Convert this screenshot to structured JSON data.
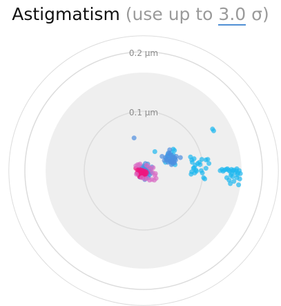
{
  "title": {
    "main": "Astigmatism",
    "open": "(use up to",
    "sigma_value": "3.0",
    "sigma_unit": "σ)"
  },
  "chart_data": {
    "type": "scatter",
    "title": "Astigmatism",
    "rings": [
      {
        "value": 0.2,
        "label": "0.2 μm"
      },
      {
        "value": 0.1,
        "label": "0.1 μm"
      }
    ],
    "sigma_limit": 3.0,
    "sigma_radius": 0.165,
    "max_radius": 0.227,
    "colors": {
      "ring": "#dcdcdc",
      "sigma_area": "#efefef",
      "blue": "#4f8fe0",
      "cyan": "#1fb8ef",
      "magenta": "#f0157f",
      "pink": "#d86cc4"
    },
    "series": [
      {
        "color": "cyan",
        "x": [
          0.003,
          0.005,
          0.001,
          0.0,
          0.008,
          0.038,
          0.04,
          0.046,
          0.05,
          0.044,
          0.048,
          0.041,
          0.052,
          0.037,
          0.046,
          0.043,
          0.049,
          0.045,
          0.053,
          0.019,
          0.05,
          0.052,
          0.079,
          0.081,
          0.085,
          0.082,
          0.087,
          0.084,
          0.088,
          0.081,
          0.086,
          0.089,
          0.085,
          0.08,
          0.091,
          0.095,
          0.097,
          0.099,
          0.094,
          0.098,
          0.101,
          0.103,
          0.105,
          0.11,
          0.105,
          0.108,
          0.116,
          0.118,
          0.129,
          0.132,
          0.134,
          0.136,
          0.139,
          0.141,
          0.143,
          0.145,
          0.148,
          0.15,
          0.152,
          0.154,
          0.156,
          0.157,
          0.159,
          0.161,
          0.163,
          0.147,
          0.14,
          0.15,
          0.158,
          0.162,
          0.157,
          0.148,
          0.144,
          0.152,
          0.146,
          0.16
        ],
        "y": [
          0.004,
          -0.001,
          0.006,
          0.002,
          0.004,
          0.02,
          0.024,
          0.018,
          0.027,
          0.016,
          0.022,
          0.028,
          0.019,
          0.014,
          0.03,
          0.025,
          0.012,
          0.015,
          0.01,
          0.032,
          0.036,
          0.034,
          0.023,
          0.018,
          0.02,
          0.014,
          0.009,
          0.004,
          0.001,
          -0.002,
          -0.004,
          -0.001,
          0.005,
          -0.006,
          0.012,
          0.01,
          0.0,
          -0.004,
          0.014,
          0.019,
          -0.012,
          -0.014,
          0.004,
          0.012,
          0.018,
          0.019,
          0.07,
          0.067,
          0.0,
          0.002,
          -0.001,
          0.001,
          0.002,
          0.003,
          0.001,
          -0.001,
          0.002,
          0.0,
          0.001,
          -0.003,
          0.0,
          0.003,
          -0.004,
          0.0,
          -0.005,
          -0.008,
          -0.012,
          -0.01,
          -0.007,
          -0.014,
          -0.012,
          -0.005,
          -0.016,
          -0.018,
          -0.022,
          -0.024
        ]
      },
      {
        "color": "blue",
        "x": [
          -0.007,
          -0.003,
          0.0,
          0.004,
          0.007,
          -0.005,
          -0.001,
          0.003,
          0.006,
          0.009,
          -0.004,
          0.001,
          0.005,
          0.008,
          0.011,
          -0.002,
          0.002,
          0.006,
          0.01,
          0.012,
          -0.006,
          0.0,
          0.004,
          0.008,
          0.013,
          0.014,
          -0.008,
          0.003,
          0.007,
          0.002,
          -0.016,
          0.037,
          0.04,
          0.044,
          0.047,
          0.05,
          0.053,
          0.039,
          0.043,
          0.046,
          0.049,
          0.051,
          0.054,
          0.041,
          0.045,
          0.048,
          0.052,
          0.042,
          0.044,
          0.055,
          0.031,
          0.035,
          0.047,
          0.062
        ],
        "y": [
          0.004,
          0.006,
          0.008,
          0.007,
          0.005,
          -0.001,
          0.001,
          0.003,
          0.002,
          0.0,
          -0.004,
          -0.006,
          -0.005,
          -0.003,
          -0.002,
          -0.008,
          -0.01,
          -0.009,
          -0.007,
          0.003,
          -0.011,
          -0.012,
          -0.013,
          -0.012,
          -0.004,
          0.006,
          -0.002,
          0.012,
          0.011,
          -0.015,
          0.055,
          0.022,
          0.025,
          0.028,
          0.026,
          0.023,
          0.021,
          0.018,
          0.019,
          0.02,
          0.017,
          0.015,
          0.018,
          0.014,
          0.015,
          0.014,
          0.013,
          0.03,
          0.035,
          0.024,
          0.024,
          0.017,
          0.01,
          0.022
        ]
      },
      {
        "color": "magenta",
        "x": [
          -0.01,
          -0.007,
          -0.004,
          -0.001,
          0.002,
          -0.008,
          -0.005,
          -0.002,
          0.001,
          0.004,
          -0.009,
          -0.006,
          -0.003,
          0.0,
          0.003,
          -0.007,
          -0.004,
          -0.001,
          0.002,
          -0.011,
          -0.013,
          0.005
        ],
        "y": [
          0.001,
          0.002,
          0.001,
          0.0,
          -0.001,
          -0.002,
          -0.003,
          -0.004,
          -0.003,
          -0.002,
          -0.006,
          -0.007,
          -0.008,
          -0.007,
          -0.006,
          -0.01,
          -0.011,
          -0.01,
          -0.009,
          -0.004,
          0.004,
          -0.004
        ]
      },
      {
        "color": "pink",
        "x": [
          -0.013,
          -0.01,
          -0.006,
          0.005,
          0.009,
          0.012,
          0.015,
          0.019,
          0.021,
          0.018,
          0.014,
          0.01,
          0.006,
          0.002,
          -0.003,
          -0.008,
          -0.012,
          0.016,
          0.02
        ],
        "y": [
          0.008,
          0.01,
          0.011,
          0.009,
          0.006,
          0.002,
          -0.003,
          -0.008,
          -0.013,
          -0.016,
          -0.015,
          -0.016,
          -0.013,
          -0.014,
          -0.012,
          0.009,
          -0.006,
          0.005,
          -0.005
        ]
      }
    ]
  }
}
